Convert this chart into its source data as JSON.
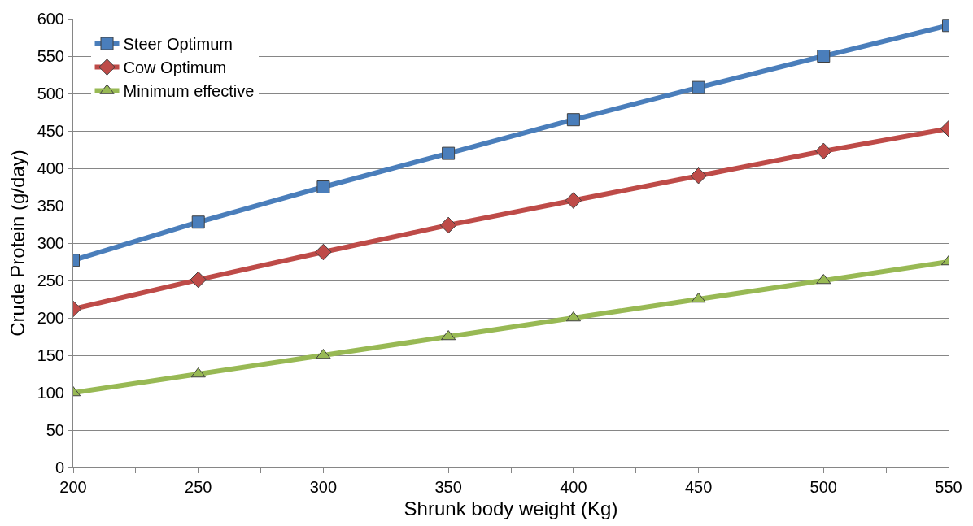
{
  "chart_data": {
    "type": "line",
    "xlabel": "Shrunk body weight (Kg)",
    "ylabel": "Crude Protein (g/day)",
    "x": [
      200,
      250,
      300,
      350,
      400,
      450,
      500,
      550
    ],
    "series": [
      {
        "name": "Steer Optimum",
        "color": "#4a7ebb",
        "marker": "square",
        "values": [
          277,
          328,
          375,
          420,
          465,
          508,
          550,
          591
        ]
      },
      {
        "name": "Cow Optimum",
        "color": "#be4b48",
        "marker": "diamond",
        "values": [
          212,
          251,
          288,
          324,
          357,
          390,
          423,
          453
        ]
      },
      {
        "name": "Minimum effective",
        "color": "#98b954",
        "marker": "triangle",
        "values": [
          100,
          125,
          150,
          175,
          200,
          225,
          250,
          275
        ]
      }
    ],
    "xlim": [
      200,
      550
    ],
    "xticks": [
      200,
      {
        "value": 225,
        "label": null
      },
      250,
      {
        "value": 275,
        "label": null
      },
      300,
      {
        "value": 325,
        "label": null
      },
      350,
      {
        "value": 375,
        "label": null
      },
      400,
      {
        "value": 425,
        "label": null
      },
      450,
      {
        "value": 475,
        "label": null
      },
      500,
      {
        "value": 525,
        "label": null
      },
      550
    ],
    "ylim": [
      0,
      600
    ],
    "yticks": [
      0,
      50,
      100,
      150,
      200,
      250,
      300,
      350,
      400,
      450,
      500,
      550,
      600
    ],
    "grid": "y",
    "legend": "top left",
    "line_style": "solid"
  }
}
